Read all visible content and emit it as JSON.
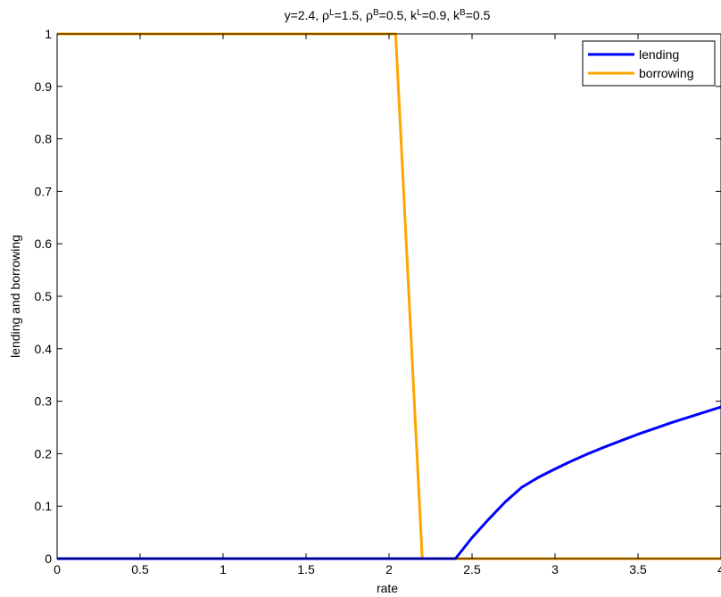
{
  "chart_data": {
    "type": "line",
    "title": {
      "parts": [
        {
          "text": "y=2.4, ρ"
        },
        {
          "text": "L",
          "sup": true
        },
        {
          "text": "=1.5, ρ"
        },
        {
          "text": "B",
          "sup": true
        },
        {
          "text": "=0.5, k"
        },
        {
          "text": "L",
          "sup": true
        },
        {
          "text": "=0.9, k"
        },
        {
          "text": "B",
          "sup": true
        },
        {
          "text": "=0.5"
        }
      ]
    },
    "xlabel": "rate",
    "ylabel": "lending and borrowing",
    "xlim": [
      0,
      4
    ],
    "ylim": [
      0,
      1
    ],
    "xticks": [
      0,
      0.5,
      1,
      1.5,
      2,
      2.5,
      3,
      3.5,
      4
    ],
    "xtick_labels": [
      "0",
      "0.5",
      "1",
      "1.5",
      "2",
      "2.5",
      "3",
      "3.5",
      "4"
    ],
    "yticks": [
      0,
      0.1,
      0.2,
      0.3,
      0.4,
      0.5,
      0.6,
      0.7,
      0.8,
      0.9,
      1
    ],
    "ytick_labels": [
      "0",
      "0.1",
      "0.2",
      "0.3",
      "0.4",
      "0.5",
      "0.6",
      "0.7",
      "0.8",
      "0.9",
      "1"
    ],
    "grid": false,
    "legend_position": "top-right",
    "series": [
      {
        "name": "lending",
        "color": "#0000ff",
        "x": [
          0,
          2.4,
          2.5,
          2.6,
          2.7,
          2.8,
          2.9,
          3.0,
          3.1,
          3.2,
          3.3,
          3.4,
          3.5,
          3.6,
          3.7,
          3.8,
          3.9,
          4.0
        ],
        "y": [
          0,
          0,
          0.04,
          0.075,
          0.108,
          0.136,
          0.155,
          0.171,
          0.186,
          0.2,
          0.213,
          0.225,
          0.237,
          0.248,
          0.259,
          0.269,
          0.279,
          0.289
        ]
      },
      {
        "name": "borrowing",
        "color": "#ffa500",
        "x": [
          0,
          2.04,
          2.2,
          4.0
        ],
        "y": [
          1,
          1,
          0,
          0
        ]
      }
    ]
  }
}
